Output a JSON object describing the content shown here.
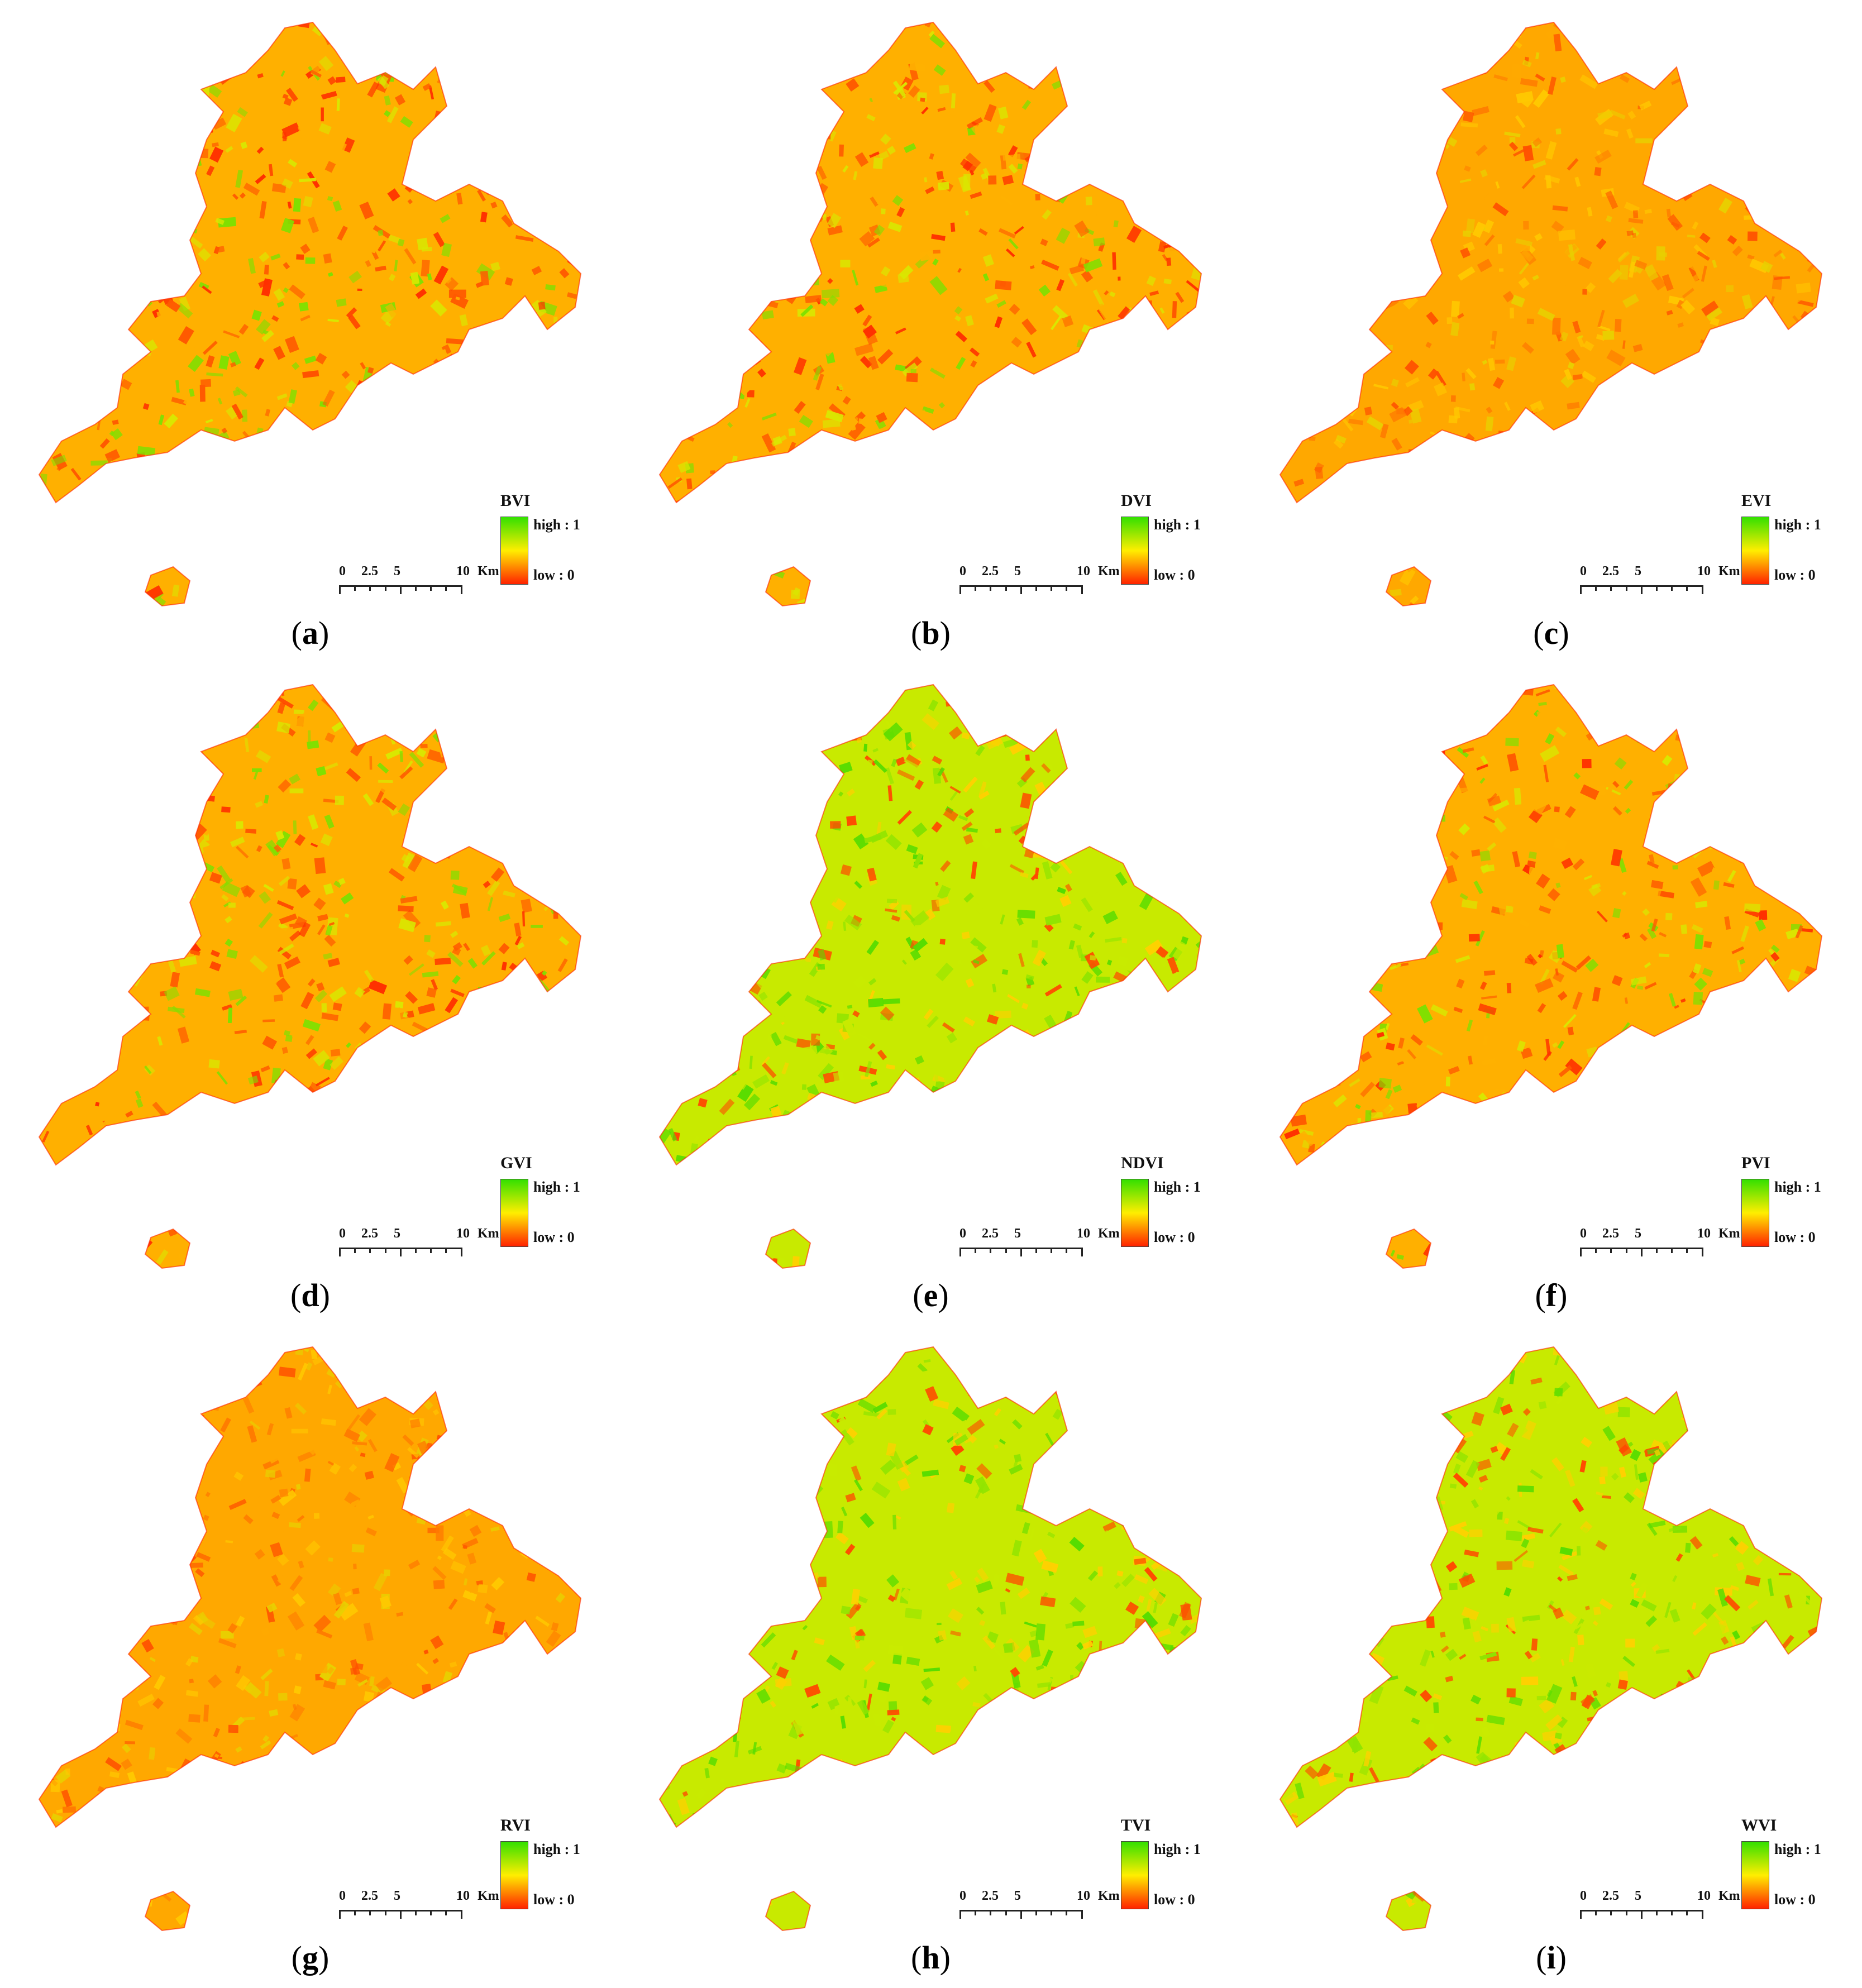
{
  "figure": {
    "panels": [
      {
        "letter": "a",
        "index": "BVI",
        "high": "high : 1",
        "low": "low : 0",
        "tone": "mixed"
      },
      {
        "letter": "b",
        "index": "DVI",
        "high": "high : 1",
        "low": "low : 0",
        "tone": "mixed"
      },
      {
        "letter": "c",
        "index": "EVI",
        "high": "high : 1",
        "low": "low : 0",
        "tone": "orange"
      },
      {
        "letter": "d",
        "index": "GVI",
        "high": "high : 1",
        "low": "low : 0",
        "tone": "mixed"
      },
      {
        "letter": "e",
        "index": "NDVI",
        "high": "high : 1",
        "low": "low : 0",
        "tone": "green"
      },
      {
        "letter": "f",
        "index": "PVI",
        "high": "high : 1",
        "low": "low : 0",
        "tone": "mixed"
      },
      {
        "letter": "g",
        "index": "RVI",
        "high": "high : 1",
        "low": "low : 0",
        "tone": "orange"
      },
      {
        "letter": "h",
        "index": "TVI",
        "high": "high : 1",
        "low": "low : 0",
        "tone": "green"
      },
      {
        "letter": "i",
        "index": "WVI",
        "high": "high : 1",
        "low": "low : 0",
        "tone": "green"
      }
    ],
    "scale_bar": {
      "ticks": [
        "0",
        "2.5",
        "5",
        "10"
      ],
      "unit": "Km"
    },
    "colors": {
      "high": "#33e000",
      "mid": "#ffee00",
      "low": "#ff2200",
      "outline": "#222222"
    }
  }
}
